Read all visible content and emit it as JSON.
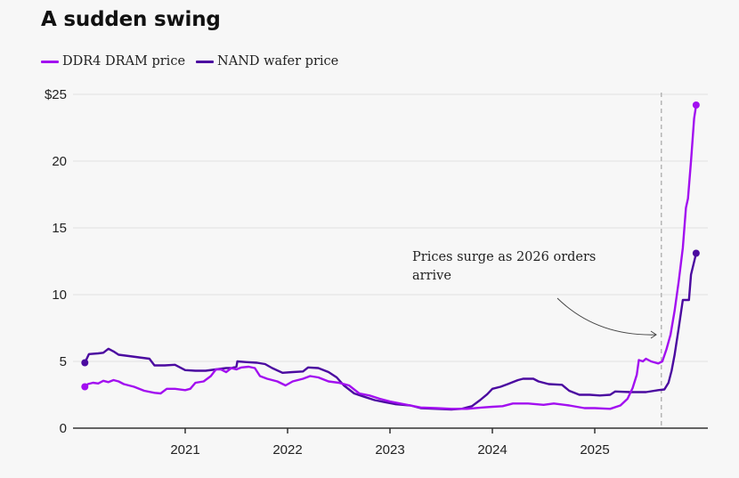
{
  "chart_data": {
    "type": "line",
    "title": "A sudden swing",
    "xlabel": "",
    "ylabel": "",
    "xlim": [
      2020.0,
      2026.0
    ],
    "ylim": [
      0,
      25
    ],
    "grid": true,
    "legend_position": "top-left",
    "y_ticks": [
      {
        "value": 0,
        "label": "0"
      },
      {
        "value": 5,
        "label": "5"
      },
      {
        "value": 10,
        "label": "10"
      },
      {
        "value": 15,
        "label": "15"
      },
      {
        "value": 20,
        "label": "20"
      },
      {
        "value": 25,
        "label": "$25"
      }
    ],
    "x_ticks": [
      {
        "value": 2021,
        "label": "2021"
      },
      {
        "value": 2022,
        "label": "2022"
      },
      {
        "value": 2023,
        "label": "2023"
      },
      {
        "value": 2024,
        "label": "2024"
      },
      {
        "value": 2025,
        "label": "2025"
      }
    ],
    "series": [
      {
        "name": "DDR4 DRAM price",
        "color": "#a20ff0",
        "endpoints_marked": true,
        "points": [
          [
            2020.02,
            3.1
          ],
          [
            2020.05,
            3.3
          ],
          [
            2020.1,
            3.4
          ],
          [
            2020.15,
            3.35
          ],
          [
            2020.2,
            3.55
          ],
          [
            2020.25,
            3.45
          ],
          [
            2020.3,
            3.6
          ],
          [
            2020.35,
            3.5
          ],
          [
            2020.4,
            3.3
          ],
          [
            2020.5,
            3.1
          ],
          [
            2020.6,
            2.8
          ],
          [
            2020.7,
            2.65
          ],
          [
            2020.76,
            2.6
          ],
          [
            2020.82,
            2.95
          ],
          [
            2020.9,
            2.95
          ],
          [
            2021.0,
            2.85
          ],
          [
            2021.05,
            2.95
          ],
          [
            2021.1,
            3.4
          ],
          [
            2021.18,
            3.5
          ],
          [
            2021.25,
            3.9
          ],
          [
            2021.3,
            4.4
          ],
          [
            2021.35,
            4.4
          ],
          [
            2021.4,
            4.2
          ],
          [
            2021.45,
            4.5
          ],
          [
            2021.5,
            4.4
          ],
          [
            2021.55,
            4.55
          ],
          [
            2021.62,
            4.6
          ],
          [
            2021.68,
            4.5
          ],
          [
            2021.73,
            3.9
          ],
          [
            2021.8,
            3.7
          ],
          [
            2021.9,
            3.5
          ],
          [
            2021.98,
            3.2
          ],
          [
            2022.05,
            3.5
          ],
          [
            2022.15,
            3.7
          ],
          [
            2022.22,
            3.9
          ],
          [
            2022.3,
            3.8
          ],
          [
            2022.4,
            3.5
          ],
          [
            2022.5,
            3.4
          ],
          [
            2022.6,
            3.2
          ],
          [
            2022.7,
            2.6
          ],
          [
            2022.8,
            2.45
          ],
          [
            2022.9,
            2.2
          ],
          [
            2023.0,
            2.0
          ],
          [
            2023.1,
            1.85
          ],
          [
            2023.2,
            1.7
          ],
          [
            2023.3,
            1.55
          ],
          [
            2023.45,
            1.5
          ],
          [
            2023.6,
            1.45
          ],
          [
            2023.75,
            1.45
          ],
          [
            2023.9,
            1.55
          ],
          [
            2024.0,
            1.6
          ],
          [
            2024.1,
            1.65
          ],
          [
            2024.2,
            1.85
          ],
          [
            2024.35,
            1.85
          ],
          [
            2024.5,
            1.75
          ],
          [
            2024.6,
            1.85
          ],
          [
            2024.75,
            1.7
          ],
          [
            2024.9,
            1.5
          ],
          [
            2025.0,
            1.5
          ],
          [
            2025.15,
            1.45
          ],
          [
            2025.25,
            1.7
          ],
          [
            2025.32,
            2.2
          ],
          [
            2025.37,
            3.0
          ],
          [
            2025.41,
            4.0
          ],
          [
            2025.43,
            5.1
          ],
          [
            2025.47,
            5.0
          ],
          [
            2025.5,
            5.2
          ],
          [
            2025.55,
            5.0
          ],
          [
            2025.62,
            4.85
          ],
          [
            2025.66,
            5.0
          ],
          [
            2025.7,
            5.9
          ],
          [
            2025.74,
            7.0
          ],
          [
            2025.78,
            8.8
          ],
          [
            2025.82,
            11.0
          ],
          [
            2025.86,
            13.5
          ],
          [
            2025.89,
            16.5
          ],
          [
            2025.91,
            17.2
          ],
          [
            2025.94,
            20.0
          ],
          [
            2025.97,
            23.2
          ],
          [
            2025.99,
            24.2
          ]
        ]
      },
      {
        "name": "NAND wafer price",
        "color": "#4b0aa0",
        "endpoints_marked": true,
        "points": [
          [
            2020.02,
            4.9
          ],
          [
            2020.06,
            5.55
          ],
          [
            2020.15,
            5.6
          ],
          [
            2020.2,
            5.65
          ],
          [
            2020.25,
            5.95
          ],
          [
            2020.3,
            5.75
          ],
          [
            2020.35,
            5.5
          ],
          [
            2020.45,
            5.4
          ],
          [
            2020.55,
            5.3
          ],
          [
            2020.65,
            5.2
          ],
          [
            2020.7,
            4.7
          ],
          [
            2020.8,
            4.7
          ],
          [
            2020.9,
            4.75
          ],
          [
            2021.0,
            4.35
          ],
          [
            2021.1,
            4.3
          ],
          [
            2021.2,
            4.3
          ],
          [
            2021.3,
            4.4
          ],
          [
            2021.4,
            4.5
          ],
          [
            2021.45,
            4.5
          ],
          [
            2021.5,
            4.6
          ],
          [
            2021.51,
            5.0
          ],
          [
            2021.6,
            4.95
          ],
          [
            2021.7,
            4.9
          ],
          [
            2021.78,
            4.8
          ],
          [
            2021.85,
            4.5
          ],
          [
            2021.95,
            4.15
          ],
          [
            2022.05,
            4.2
          ],
          [
            2022.15,
            4.25
          ],
          [
            2022.2,
            4.55
          ],
          [
            2022.3,
            4.5
          ],
          [
            2022.4,
            4.2
          ],
          [
            2022.48,
            3.8
          ],
          [
            2022.55,
            3.2
          ],
          [
            2022.65,
            2.6
          ],
          [
            2022.75,
            2.35
          ],
          [
            2022.85,
            2.1
          ],
          [
            2022.95,
            1.95
          ],
          [
            2023.05,
            1.8
          ],
          [
            2023.2,
            1.7
          ],
          [
            2023.3,
            1.5
          ],
          [
            2023.45,
            1.45
          ],
          [
            2023.6,
            1.4
          ],
          [
            2023.7,
            1.45
          ],
          [
            2023.8,
            1.65
          ],
          [
            2023.88,
            2.1
          ],
          [
            2023.95,
            2.55
          ],
          [
            2024.0,
            2.95
          ],
          [
            2024.08,
            3.1
          ],
          [
            2024.15,
            3.3
          ],
          [
            2024.2,
            3.45
          ],
          [
            2024.25,
            3.6
          ],
          [
            2024.3,
            3.7
          ],
          [
            2024.4,
            3.7
          ],
          [
            2024.45,
            3.5
          ],
          [
            2024.55,
            3.3
          ],
          [
            2024.68,
            3.25
          ],
          [
            2024.75,
            2.8
          ],
          [
            2024.85,
            2.5
          ],
          [
            2024.95,
            2.5
          ],
          [
            2025.05,
            2.45
          ],
          [
            2025.15,
            2.5
          ],
          [
            2025.2,
            2.75
          ],
          [
            2025.35,
            2.7
          ],
          [
            2025.5,
            2.7
          ],
          [
            2025.62,
            2.85
          ],
          [
            2025.68,
            2.9
          ],
          [
            2025.72,
            3.4
          ],
          [
            2025.75,
            4.3
          ],
          [
            2025.78,
            5.5
          ],
          [
            2025.82,
            7.5
          ],
          [
            2025.86,
            9.6
          ],
          [
            2025.92,
            9.6
          ],
          [
            2025.94,
            11.5
          ],
          [
            2025.99,
            13.1
          ]
        ]
      }
    ],
    "annotations": [
      {
        "text_lines": [
          "Prices surge as 2026 orders",
          "arrive"
        ],
        "arrow_to": [
          2025.6,
          7.0
        ],
        "reference_line_x": 2025.65,
        "reference_line_style": "dashed"
      }
    ]
  }
}
